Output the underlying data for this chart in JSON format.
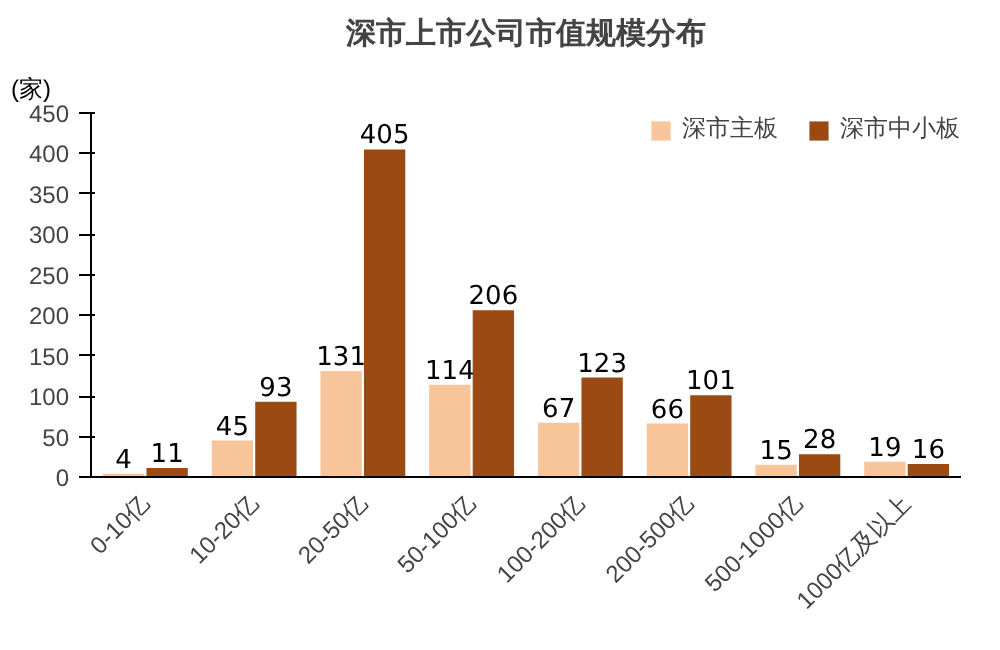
{
  "chart_data": {
    "type": "bar",
    "title": "深市上市公司市值规模分布",
    "ylabel": "(家)",
    "categories": [
      "0-10亿",
      "10-20亿",
      "20-50亿",
      "50-100亿",
      "100-200亿",
      "200-500亿",
      "500-1000亿",
      "1000亿及以上"
    ],
    "series": [
      {
        "name": "深市主板",
        "color": "#f8c49a",
        "values": [
          4,
          45,
          131,
          114,
          67,
          66,
          15,
          19
        ]
      },
      {
        "name": "深市中小板",
        "color": "#9a4a12",
        "values": [
          11,
          93,
          405,
          206,
          123,
          101,
          28,
          16
        ]
      }
    ],
    "ylim": [
      0,
      450
    ],
    "yticks": [
      0,
      50,
      100,
      150,
      200,
      250,
      300,
      350,
      400,
      450
    ],
    "grid": false,
    "legend": "top right",
    "data_labels": true
  }
}
